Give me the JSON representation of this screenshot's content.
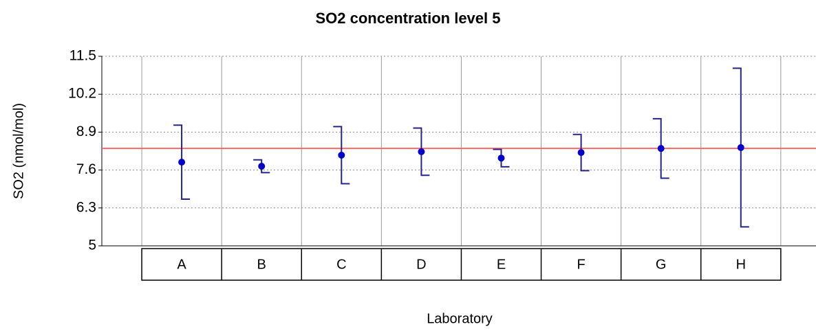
{
  "chart_data": {
    "type": "errorbar",
    "title": "SO2 concentration level 5",
    "y_label": "SO2 (nmol/mol)",
    "x_label": "Laboratory",
    "categories": [
      "A",
      "B",
      "C",
      "D",
      "E",
      "F",
      "G",
      "H"
    ],
    "values": [
      7.87,
      7.73,
      8.11,
      8.23,
      8.01,
      8.2,
      8.34,
      8.37
    ],
    "errors": [
      1.27,
      0.22,
      0.98,
      0.81,
      0.3,
      0.62,
      1.02,
      2.72
    ],
    "color": "#0000cc",
    "error_color": "#23238a",
    "reference_line": 8.34,
    "reference_color": "#ff6666",
    "ylim": [
      5,
      11.5
    ],
    "yticks": [
      5,
      6.3,
      7.6,
      8.9,
      10.2,
      11.5
    ],
    "grid": true
  }
}
